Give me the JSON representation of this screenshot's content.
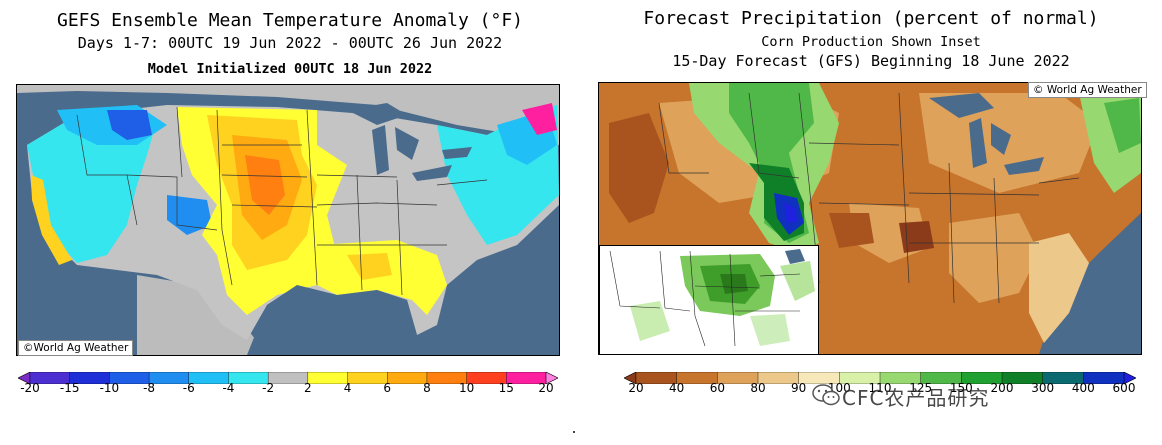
{
  "left": {
    "title": "GEFS Ensemble Mean Temperature Anomaly (°F)",
    "subtitle": "Days 1-7: 00UTC 19 Jun 2022 - 00UTC 26 Jun 2022",
    "init": "Model Initialized 00UTC 18 Jun 2022",
    "credit": "©World Ag Weather",
    "colorbar": {
      "ticks": [
        "-20",
        "-15",
        "-10",
        "-8",
        "-6",
        "-4",
        "-2",
        "2",
        "4",
        "6",
        "8",
        "10",
        "15",
        "20"
      ],
      "colors": [
        "#7a2cc4",
        "#4b2fd0",
        "#1e2fd8",
        "#1f5ee6",
        "#1f8ef0",
        "#20c0f6",
        "#35e6ee",
        "#c0c0c0",
        "#ffff33",
        "#ffd21f",
        "#ffaa10",
        "#ff7f10",
        "#ff4020",
        "#ff20a0",
        "#ff80e0"
      ]
    }
  },
  "right": {
    "title": "Forecast Precipitation (percent of normal)",
    "subtitle": "Corn Production Shown Inset",
    "subtitle2": "15-Day Forecast (GFS) Beginning 18 June 2022",
    "credit": "© World Ag Weather",
    "colorbar": {
      "ticks": [
        "20",
        "40",
        "60",
        "80",
        "90",
        "100",
        "110",
        "125",
        "150",
        "200",
        "300",
        "400",
        "600"
      ],
      "colors": [
        "#8b3a1a",
        "#a9541e",
        "#c7742c",
        "#dea25a",
        "#ecc98a",
        "#f6e8b8",
        "#d8f0a8",
        "#98d870",
        "#50b848",
        "#20a030",
        "#108028",
        "#0a6a70",
        "#1030c0",
        "#2020e0"
      ]
    }
  },
  "watermark": "CFC农产品研究"
}
